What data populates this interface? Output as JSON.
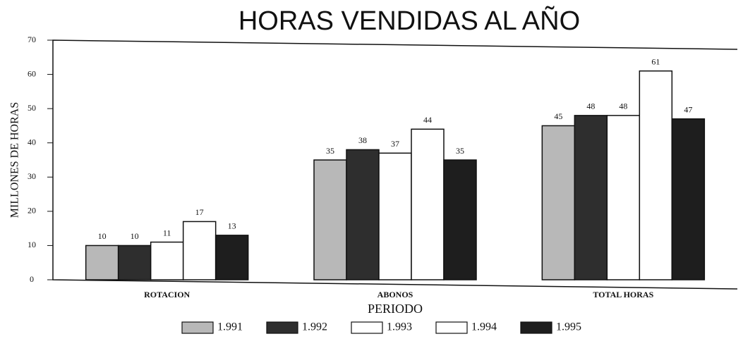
{
  "chart_data": {
    "type": "bar",
    "title": "HORAS VENDIDAS AL AÑO",
    "y_label": "MILLONES DE HORAS",
    "x_label": "PERIODO",
    "categories": [
      "ROTACION",
      "ABONOS",
      "TOTAL HORAS"
    ],
    "series": [
      {
        "name": "1.991",
        "color": "#b8b8b8",
        "values": [
          10,
          35,
          45
        ]
      },
      {
        "name": "1.992",
        "color": "#2e2e2e",
        "values": [
          10,
          38,
          48
        ]
      },
      {
        "name": "1.993",
        "color": "#ffffff",
        "values": [
          11,
          37,
          48
        ]
      },
      {
        "name": "1.994",
        "color": "#ffffff",
        "values": [
          17,
          44,
          61
        ]
      },
      {
        "name": "1.995",
        "color": "#1e1e1e",
        "values": [
          13,
          35,
          47
        ]
      }
    ],
    "ylim": [
      0,
      70
    ],
    "yticks": [
      0,
      10,
      20,
      30,
      40,
      50,
      60,
      70
    ],
    "grid": false
  }
}
